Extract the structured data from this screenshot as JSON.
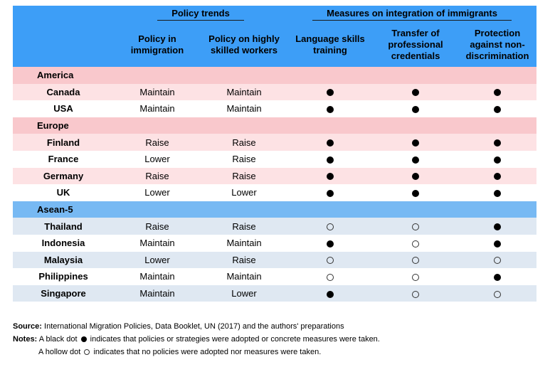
{
  "header": {
    "group_policy": "Policy trends",
    "group_measures": "Measures on integration of immigrants",
    "columns": [
      "",
      "Policy in immigration",
      "Policy on highly skilled workers",
      "Language skills training",
      "Transfer of professional credentials",
      "Protection against non-discrimination"
    ]
  },
  "sections": [
    {
      "name": "America",
      "rows": [
        {
          "country": "Canada",
          "immigration": "Maintain",
          "skilled": "Maintain",
          "language": "filled",
          "credentials": "filled",
          "protection": "filled"
        },
        {
          "country": "USA",
          "immigration": "Maintain",
          "skilled": "Maintain",
          "language": "filled",
          "credentials": "filled",
          "protection": "filled"
        }
      ]
    },
    {
      "name": "Europe",
      "rows": [
        {
          "country": "Finland",
          "immigration": "Raise",
          "skilled": "Raise",
          "language": "filled",
          "credentials": "filled",
          "protection": "filled"
        },
        {
          "country": "France",
          "immigration": "Lower",
          "skilled": "Raise",
          "language": "filled",
          "credentials": "filled",
          "protection": "filled"
        },
        {
          "country": "Germany",
          "immigration": "Raise",
          "skilled": "Raise",
          "language": "filled",
          "credentials": "filled",
          "protection": "filled"
        },
        {
          "country": "UK",
          "immigration": "Lower",
          "skilled": "Lower",
          "language": "filled",
          "credentials": "filled",
          "protection": "filled"
        }
      ]
    },
    {
      "name": "Asean-5",
      "rows": [
        {
          "country": "Thailand",
          "immigration": "Raise",
          "skilled": "Raise",
          "language": "hollow",
          "credentials": "hollow",
          "protection": "filled"
        },
        {
          "country": "Indonesia",
          "immigration": "Maintain",
          "skilled": "Maintain",
          "language": "filled",
          "credentials": "hollow",
          "protection": "filled"
        },
        {
          "country": "Malaysia",
          "immigration": "Lower",
          "skilled": "Raise",
          "language": "hollow",
          "credentials": "hollow",
          "protection": "hollow"
        },
        {
          "country": "Philippines",
          "immigration": "Maintain",
          "skilled": "Maintain",
          "language": "hollow",
          "credentials": "hollow",
          "protection": "filled"
        },
        {
          "country": "Singapore",
          "immigration": "Maintain",
          "skilled": "Lower",
          "language": "filled",
          "credentials": "hollow",
          "protection": "hollow"
        }
      ]
    }
  ],
  "notes": {
    "source_label": "Source:",
    "source_text": "International Migration Policies, Data Booklet, UN (2017) and the authors' preparations",
    "notes_label": "Notes:",
    "note1_pre": "A black dot",
    "note1_post": "indicates that policies or strategies were adopted or concrete measures were taken.",
    "note2_pre": "A hollow dot",
    "note2_post": "indicates that no policies were adopted nor measures were taken."
  },
  "colors": {
    "header_blue": "#3d9ef7",
    "section_pink": "#f9c8cc",
    "row_pink": "#fde2e4",
    "section_blue": "#77b9f3",
    "row_blue": "#dfe8f2"
  }
}
